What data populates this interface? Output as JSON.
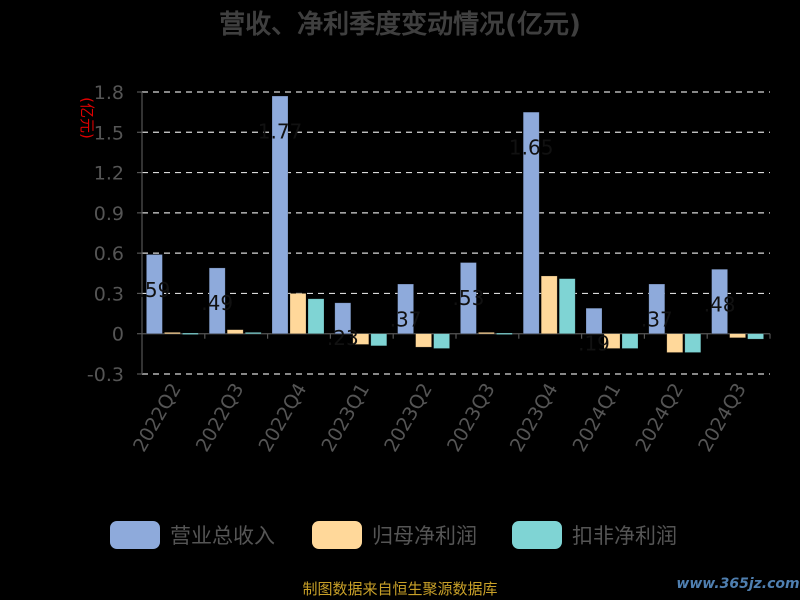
{
  "chart_data": {
    "type": "bar",
    "title": "营收、净利季度变动情况(亿元)",
    "ylabel": "(亿元)",
    "ylim": [
      -0.3,
      1.8
    ],
    "yticks": [
      1.8,
      1.5,
      1.2,
      0.9,
      0.6,
      0.3,
      0,
      -0.3
    ],
    "grid": true,
    "legend_position": "bottom",
    "categories": [
      "2022Q2",
      "2022Q3",
      "2022Q4",
      "2023Q1",
      "2023Q2",
      "2023Q3",
      "2023Q4",
      "2024Q1",
      "2024Q2",
      "2024Q3"
    ],
    "series": [
      {
        "name": "营业总收入",
        "color": "#8eaadb",
        "values": [
          0.59,
          0.49,
          1.77,
          0.23,
          0.37,
          0.53,
          1.65,
          0.19,
          0.37,
          0.48
        ],
        "data_labels": [
          ".59",
          ".49",
          "1.77",
          ".23",
          ".37",
          ".53",
          "1.65",
          ".19",
          ".37",
          ".48"
        ]
      },
      {
        "name": "归母净利润",
        "color": "#ffd89a",
        "values": [
          0.01,
          0.03,
          0.3,
          -0.08,
          -0.1,
          0.01,
          0.43,
          -0.11,
          -0.14,
          -0.03
        ]
      },
      {
        "name": "扣非净利润",
        "color": "#7fd4d4",
        "values": [
          0.005,
          0.01,
          0.26,
          -0.09,
          -0.11,
          0.005,
          0.41,
          -0.11,
          -0.14,
          -0.04
        ]
      }
    ]
  },
  "footer": {
    "source": "制图数据来自恒生聚源数据库",
    "watermark": "www.365jz.com"
  }
}
